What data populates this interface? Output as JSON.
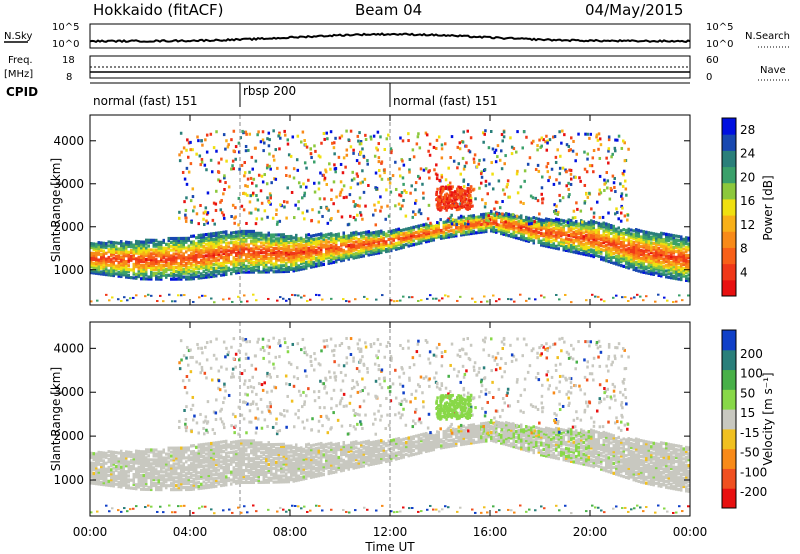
{
  "header": {
    "station": "Hokkaido (fitACF)",
    "beam": "Beam 04",
    "date": "04/May/2015"
  },
  "noise_panel": {
    "left_label": "N.Sky",
    "right_label": "N.Search",
    "left_ticks": [
      "10^5",
      "10^0"
    ],
    "right_ticks": [
      "10^5",
      "10^0"
    ]
  },
  "freq_panel": {
    "left_label_top": "Freq.",
    "left_label_unit": "[MHz]",
    "right_label": "Nave",
    "left_ticks": [
      "18",
      "8"
    ],
    "right_ticks": [
      "60",
      "0"
    ]
  },
  "cpid_panel": {
    "label": "CPID",
    "segments": [
      {
        "label": "normal (fast) 151",
        "start_hour": 0,
        "end_hour": 6
      },
      {
        "label": "rbsp 200",
        "start_hour": 6,
        "end_hour": 12
      },
      {
        "label": "normal (fast) 151",
        "start_hour": 12,
        "end_hour": 24
      }
    ]
  },
  "time_axis": {
    "label": "Time UT",
    "ticks": [
      "00:00",
      "04:00",
      "08:00",
      "12:00",
      "16:00",
      "20:00",
      "00:00"
    ]
  },
  "power_panel": {
    "ylabel": "Slant Range [km]",
    "yticks": [
      "1000",
      "2000",
      "3000",
      "4000"
    ],
    "colorbar_label": "Power [dB]",
    "colorbar_ticks": [
      "4",
      "8",
      "12",
      "16",
      "20",
      "24",
      "28"
    ],
    "colors": [
      "#0010e0",
      "#1848b0",
      "#2a7f7a",
      "#3aa06a",
      "#8cc83c",
      "#f0e010",
      "#f8b018",
      "#f88a18",
      "#f86018",
      "#f03818",
      "#e81010"
    ]
  },
  "velocity_panel": {
    "ylabel": "Slant Range [km]",
    "yticks": [
      "1000",
      "2000",
      "3000",
      "4000"
    ],
    "colorbar_label": "Velocity [m s⁻¹]",
    "colorbar_ticks": [
      "200",
      "100",
      "50",
      "15",
      "-15",
      "-50",
      "-100",
      "-200"
    ],
    "colors": [
      "#1040c8",
      "#2a7f7a",
      "#48b048",
      "#88d848",
      "#c8c8c0",
      "#f0c020",
      "#f88a18",
      "#f05020",
      "#e81010"
    ]
  },
  "chart_data": {
    "type": "heatmap",
    "x_range_hours": [
      0,
      24
    ],
    "y_range_km": [
      180,
      4600
    ],
    "x_unit": "Time UT (hours)",
    "y_unit": "Slant Range (km)",
    "scatter_bands": [
      {
        "name": "main_band",
        "points": [
          [
            0,
            1250
          ],
          [
            2,
            1200
          ],
          [
            4,
            1250
          ],
          [
            6,
            1400
          ],
          [
            8,
            1350
          ],
          [
            10,
            1500
          ],
          [
            12,
            1650
          ],
          [
            14,
            1900
          ],
          [
            16,
            2100
          ],
          [
            18,
            1850
          ],
          [
            20,
            1700
          ],
          [
            22,
            1400
          ],
          [
            24,
            1200
          ]
        ]
      }
    ],
    "power_db_range": [
      0,
      30
    ],
    "velocity_range": [
      -200,
      200
    ]
  }
}
